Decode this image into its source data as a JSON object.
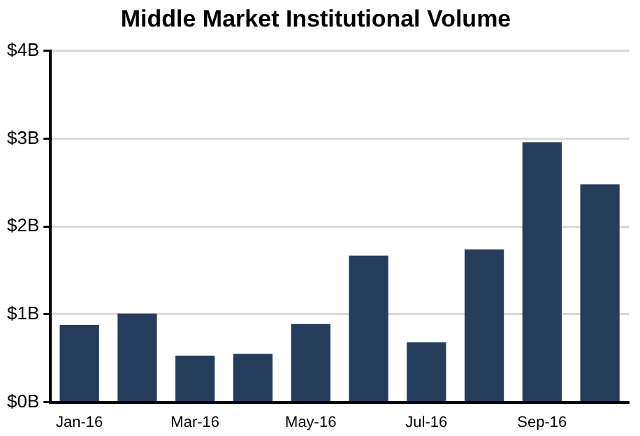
{
  "chart_data": {
    "type": "bar",
    "title": "Middle Market Institutional Volume",
    "categories": [
      "Jan-16",
      null,
      "Mar-16",
      null,
      "May-16",
      null,
      "Jul-16",
      null,
      "Sep-16",
      null
    ],
    "values": [
      0.88,
      1.01,
      0.53,
      0.55,
      0.89,
      1.67,
      0.68,
      1.74,
      2.96,
      2.48
    ],
    "color": "#253d5b",
    "ylim": [
      0,
      4
    ],
    "yticks": [
      {
        "value": 0,
        "label": "$0B"
      },
      {
        "value": 1,
        "label": "$1B"
      },
      {
        "value": 2,
        "label": "$2B"
      },
      {
        "value": 3,
        "label": "$3B"
      },
      {
        "value": 4,
        "label": "$4B"
      }
    ],
    "grid": "y",
    "legend": false
  }
}
